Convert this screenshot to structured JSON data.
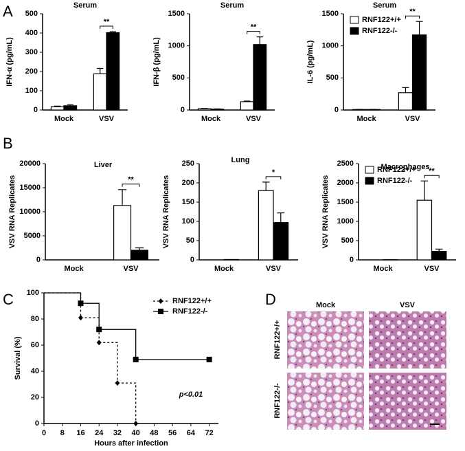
{
  "panels": [
    "A",
    "B",
    "C",
    "D"
  ],
  "chart_data": [
    {
      "type": "bar",
      "title": "Serum",
      "ylabel": "IFN-α (pg/mL)",
      "categories": [
        "Mock",
        "VSV"
      ],
      "series": [
        {
          "color": "#ffffff",
          "values": [
            17,
            188
          ],
          "errors": [
            3,
            28
          ]
        },
        {
          "color": "#000000",
          "values": [
            22,
            402
          ],
          "errors": [
            5,
            5
          ]
        }
      ],
      "ylim": [
        0,
        500
      ],
      "yticks": [
        0,
        100,
        200,
        300,
        400,
        500
      ],
      "significance": "**"
    },
    {
      "type": "bar",
      "title": "Serum",
      "ylabel": "IFN-β (pg/mL)",
      "categories": [
        "Mock",
        "VSV"
      ],
      "series": [
        {
          "color": "#ffffff",
          "values": [
            20,
            130
          ],
          "errors": [
            4,
            10
          ]
        },
        {
          "color": "#000000",
          "values": [
            15,
            1020
          ],
          "errors": [
            3,
            120
          ]
        }
      ],
      "ylim": [
        0,
        1500
      ],
      "yticks": [
        0,
        500,
        1000,
        1500
      ],
      "significance": "**"
    },
    {
      "type": "bar",
      "title": "Serum",
      "ylabel": "IL-6 (pg/mL)",
      "categories": [
        "Mock",
        "VSV"
      ],
      "series": [
        {
          "name": "RNF122+/+",
          "color": "#ffffff",
          "values": [
            8,
            270
          ],
          "errors": [
            2,
            80
          ]
        },
        {
          "name": "RNF122-/-",
          "color": "#000000",
          "values": [
            8,
            1170
          ],
          "errors": [
            2,
            210
          ]
        }
      ],
      "ylim": [
        0,
        1500
      ],
      "yticks": [
        0,
        500,
        1000,
        1500
      ],
      "significance": "**",
      "legend": "upper left"
    },
    {
      "type": "bar",
      "title": "Liver",
      "ylabel": "VSV RNA Replicates",
      "categories": [
        "Mock",
        "VSV"
      ],
      "series": [
        {
          "color": "#ffffff",
          "values": [
            0,
            11300
          ],
          "errors": [
            0,
            3300
          ]
        },
        {
          "color": "#000000",
          "values": [
            0,
            2000
          ],
          "errors": [
            0,
            500
          ]
        }
      ],
      "ylim": [
        0,
        20000
      ],
      "yticks": [
        0,
        5000,
        10000,
        15000,
        20000
      ],
      "significance": "**"
    },
    {
      "type": "bar",
      "title": "Lung",
      "ylabel": "VSV RNA Replicates",
      "categories": [
        "Mock",
        "VSV"
      ],
      "series": [
        {
          "color": "#ffffff",
          "values": [
            0,
            180
          ],
          "errors": [
            0,
            22
          ]
        },
        {
          "color": "#000000",
          "values": [
            1,
            97
          ],
          "errors": [
            0,
            25
          ]
        }
      ],
      "ylim": [
        0,
        250
      ],
      "yticks": [
        0,
        50,
        100,
        150,
        200,
        250
      ],
      "significance": "*"
    },
    {
      "type": "bar",
      "title": "Macrophages",
      "ylabel": "VSV RNA Replicates",
      "categories": [
        "Mock",
        "VSV"
      ],
      "series": [
        {
          "name": "RNF122+/+",
          "color": "#ffffff",
          "values": [
            0,
            1550
          ],
          "errors": [
            0,
            500
          ]
        },
        {
          "name": "RNF122-/-",
          "color": "#000000",
          "values": [
            5,
            220
          ],
          "errors": [
            0,
            60
          ]
        }
      ],
      "ylim": [
        0,
        2500
      ],
      "yticks": [
        0,
        500,
        1000,
        1500,
        2000,
        2500
      ],
      "significance": "**",
      "legend": "upper left"
    },
    {
      "type": "line",
      "step": true,
      "xlabel": "Hours after infection",
      "ylabel": "Survival (%)",
      "annotation": "p<0.01",
      "series": [
        {
          "name": "RNF122+/+",
          "color": "#000000",
          "dash": true,
          "marker": "diamond",
          "x": [
            0,
            16,
            24,
            32,
            40
          ],
          "values": [
            100,
            81,
            62,
            31,
            0
          ]
        },
        {
          "name": "RNF122-/-",
          "color": "#000000",
          "dash": false,
          "marker": "square",
          "x": [
            0,
            16,
            24,
            40,
            72
          ],
          "values": [
            100,
            92,
            72,
            49,
            49
          ]
        }
      ],
      "xlim": [
        0,
        76
      ],
      "xticks": [
        0,
        8,
        16,
        24,
        32,
        40,
        48,
        56,
        64,
        72
      ],
      "ylim": [
        0,
        100
      ],
      "yticks": [
        0,
        20,
        40,
        60,
        80,
        100
      ],
      "legend": "upper right"
    }
  ],
  "histology": {
    "columns": [
      "Mock",
      "VSV"
    ],
    "rows": [
      "RNF122+/+",
      "RNF122-/-"
    ]
  }
}
